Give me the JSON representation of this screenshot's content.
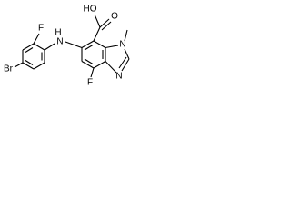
{
  "atoms": {
    "bromine": "Br",
    "fluorine_left": "F",
    "amine_h": "H",
    "amine_n": "N",
    "hydroxyl": "HO",
    "carbonyl_o": "O",
    "fluorine_core": "F",
    "n_methyl": "N",
    "n_ring": "N"
  }
}
